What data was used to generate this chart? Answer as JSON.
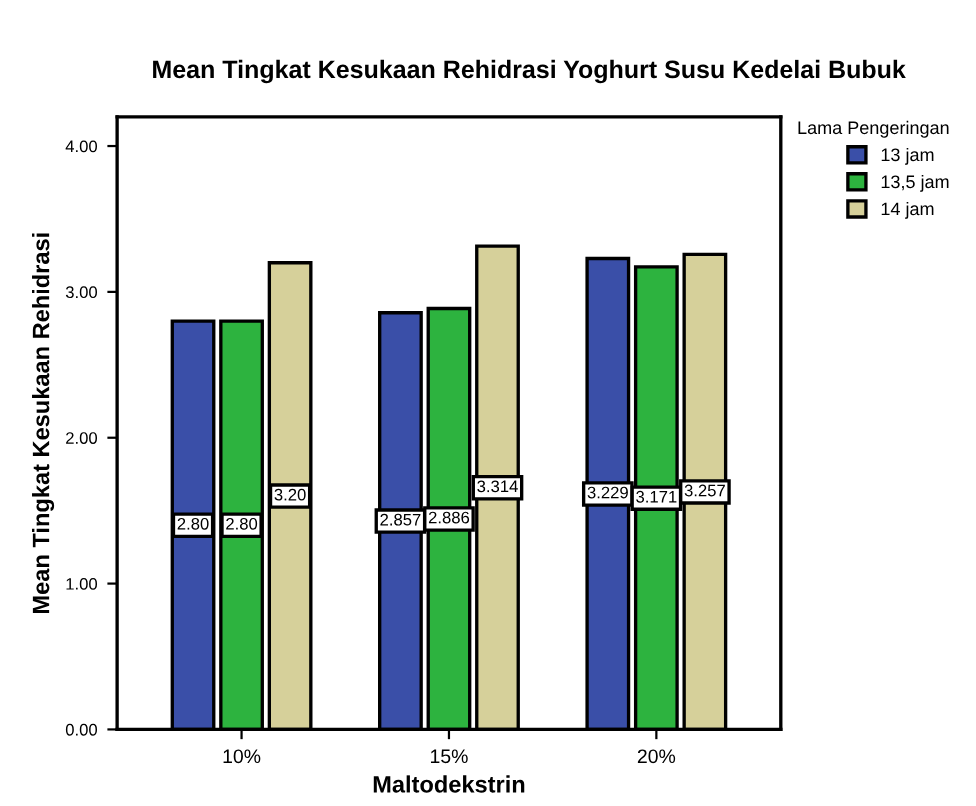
{
  "chart_data": {
    "type": "bar",
    "title": "Mean Tingkat Kesukaan Rehidrasi Yoghurt Susu Kedelai Bubuk",
    "xlabel": "Maltodekstrin",
    "ylabel": "Mean Tingkat Kesukaan Rehidrasi",
    "legend_title": "Lama Pengeringan",
    "categories": [
      "10%",
      "15%",
      "20%"
    ],
    "series": [
      {
        "name": "13 jam",
        "color": "#3a4fa8",
        "values": [
          2.8,
          2.857,
          3.229
        ],
        "value_labels": [
          "2.80",
          "2.857",
          "3.229"
        ]
      },
      {
        "name": "13,5 jam",
        "color": "#2db33f",
        "values": [
          2.8,
          2.886,
          3.171
        ],
        "value_labels": [
          "2.80",
          "2.886",
          "3.171"
        ]
      },
      {
        "name": "14 jam",
        "color": "#d6d09a",
        "values": [
          3.2,
          3.314,
          3.257
        ],
        "value_labels": [
          "3.20",
          "3.314",
          "3.257"
        ]
      }
    ],
    "ylim": [
      0,
      4.2
    ],
    "yticks": [
      {
        "value": 0,
        "label": "0.00"
      },
      {
        "value": 1,
        "label": "1.00"
      },
      {
        "value": 2,
        "label": "2.00"
      },
      {
        "value": 3,
        "label": "3.00"
      },
      {
        "value": 4,
        "label": "4.00"
      }
    ],
    "grid": false,
    "legend": "top right"
  }
}
